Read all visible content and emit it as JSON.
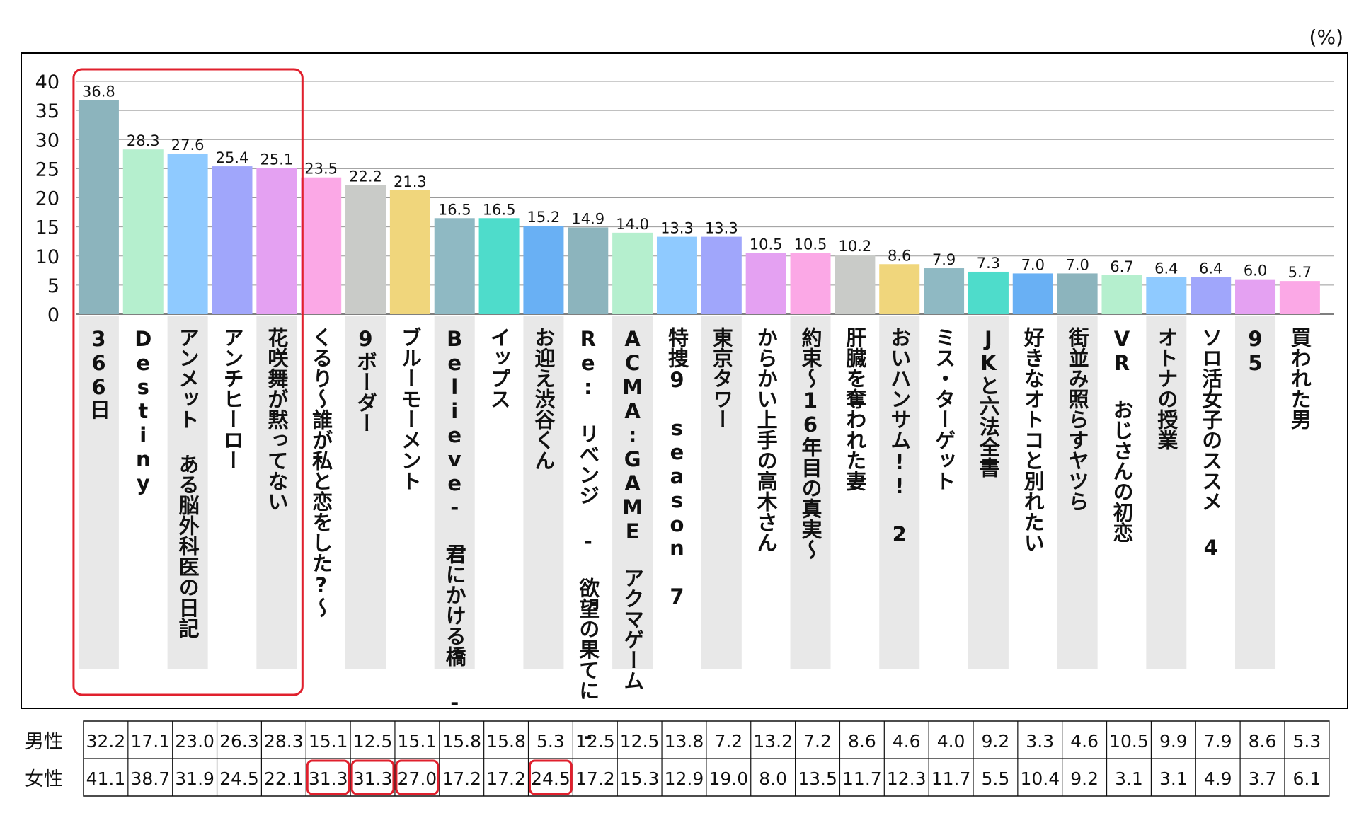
{
  "chart_data": {
    "type": "bar",
    "unit_label": "(%)",
    "ylim": [
      0,
      40
    ],
    "yticks": [
      0,
      5,
      10,
      15,
      20,
      25,
      30,
      35,
      40
    ],
    "grid": true,
    "categories": [
      "366日",
      "Destiny",
      "アンメット ある脳外科医の日記",
      "アンチヒーロー",
      "花咲舞が黙ってない",
      "くるり～誰が私と恋をした?～",
      "9ボーダー",
      "ブルーモーメント",
      "Believe- 君にかける橋 -",
      "イップス",
      "お迎え渋谷くん",
      "Re: リベンジ - 欲望の果てに -",
      "ACMA:GAME アクマゲーム",
      "特捜9 season 7",
      "東京タワー",
      "からかい上手の高木さん",
      "約束～16年目の真実～",
      "肝臓を奪われた妻",
      "おいハンサム!! 2",
      "ミス・ターゲット",
      "JKと六法全書",
      "好きなオトコと別れたい",
      "街並み照らすヤツら",
      "VR おじさんの初恋",
      "オトナの授業",
      "ソロ活女子のススメ 4",
      "95",
      "買われた男"
    ],
    "values": [
      36.8,
      28.3,
      27.6,
      25.4,
      25.1,
      23.5,
      22.2,
      21.3,
      16.5,
      16.5,
      15.2,
      14.9,
      14.0,
      13.3,
      13.3,
      10.5,
      10.5,
      10.2,
      8.6,
      7.9,
      7.3,
      7.0,
      7.0,
      6.7,
      6.4,
      6.4,
      6.0,
      5.7
    ],
    "value_labels": [
      "36.8",
      "28.3",
      "27.6",
      "25.4",
      "25.1",
      "23.5",
      "22.2",
      "21.3",
      "16.5",
      "16.5",
      "15.2",
      "14.9",
      "14.0",
      "13.3",
      "13.3",
      "10.5",
      "10.5",
      "10.2",
      "8.6",
      "7.9",
      "7.3",
      "7.0",
      "7.0",
      "6.7",
      "6.4",
      "6.4",
      "6.0",
      "5.7"
    ],
    "bar_colors": [
      "#8cb4bd",
      "#b5efce",
      "#8fcaff",
      "#a0a6fb",
      "#e4a1f2",
      "#fba8e6",
      "#c9cbc8",
      "#f0d67c",
      "#8fb9c3",
      "#4edccb",
      "#69b0f4",
      "#8cb4bd",
      "#b5efce",
      "#8fcaff",
      "#a0a6fb",
      "#e4a1f2",
      "#fba8e6",
      "#c9cbc8",
      "#f0d67c",
      "#8fb9c3",
      "#4edccb",
      "#69b0f4",
      "#8cb4bd",
      "#b5efce",
      "#8fcaff",
      "#a0a6fb",
      "#e4a1f2",
      "#fba8e6"
    ],
    "highlight_range": [
      0,
      4
    ],
    "highlight_color": "#e0202d",
    "table": {
      "row_labels": [
        "男性",
        "女性"
      ],
      "rows": [
        [
          "32.2",
          "17.1",
          "23.0",
          "26.3",
          "28.3",
          "15.1",
          "12.5",
          "15.1",
          "15.8",
          "15.8",
          "5.3",
          "12.5",
          "12.5",
          "13.8",
          "7.2",
          "13.2",
          "7.2",
          "8.6",
          "4.6",
          "4.0",
          "9.2",
          "3.3",
          "4.6",
          "10.5",
          "9.9",
          "7.9",
          "8.6",
          "5.3"
        ],
        [
          "41.1",
          "38.7",
          "31.9",
          "24.5",
          "22.1",
          "31.3",
          "31.3",
          "27.0",
          "17.2",
          "17.2",
          "24.5",
          "17.2",
          "15.3",
          "12.9",
          "19.0",
          "8.0",
          "13.5",
          "11.7",
          "12.3",
          "11.7",
          "5.5",
          "10.4",
          "9.2",
          "3.1",
          "3.1",
          "4.9",
          "3.7",
          "6.1"
        ]
      ],
      "highlighted_cells": [
        [
          1,
          5
        ],
        [
          1,
          6
        ],
        [
          1,
          7
        ],
        [
          1,
          10
        ]
      ]
    }
  }
}
